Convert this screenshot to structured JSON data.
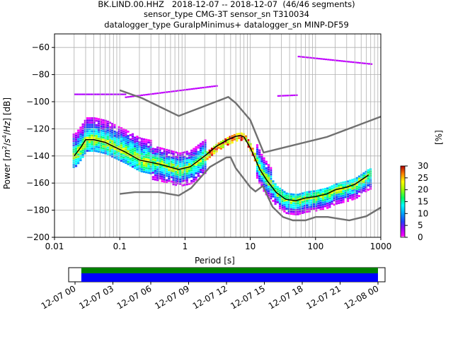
{
  "titles": [
    "BK.LIND.00.HHZ   2018-12-07 -- 2018-12-07  (46/46 segments)",
    "sensor_type CMG-3T sensor_sn T310034",
    "datalogger_type GuralpMinimus+ datalogger_sn MINP-DF59"
  ],
  "colorbar": {
    "label": "[%]",
    "ticks": [
      "0",
      "5",
      "10",
      "15",
      "20",
      "25",
      "30"
    ],
    "range": [
      0,
      30
    ]
  },
  "chart_data": [
    {
      "type": "line",
      "title": "BK.LIND.00.HHZ 2018-12-07 -- 2018-12-07 (46/46 segments)",
      "xlabel": "Period [s]",
      "ylabel": "Power [m²/s⁴/Hz] [dB]",
      "xscale": "log",
      "xlim": [
        0.01,
        1000
      ],
      "ylim": [
        -200,
        -50
      ],
      "xticks": [
        "0.01",
        "0.1",
        "1",
        "10",
        "100",
        "1000"
      ],
      "yticks": [
        "−200",
        "−180",
        "−160",
        "−140",
        "−120",
        "−100",
        "−80",
        "−60"
      ],
      "grid": true,
      "series": [
        {
          "role": "noise-model-high",
          "color": "#707070",
          "x": [
            0.1,
            0.22,
            0.8,
            3.8,
            4.6,
            6.0,
            10.0,
            16.0,
            150.0,
            300.0,
            1000.0
          ],
          "y": [
            -91.5,
            -97.4,
            -110.5,
            -98.0,
            -96.5,
            -101.0,
            -113.5,
            -137.5,
            -126.0,
            -120.5,
            -111.0
          ]
        },
        {
          "role": "noise-model-low",
          "color": "#707070",
          "x": [
            0.1,
            0.17,
            0.4,
            0.8,
            1.24,
            2.4,
            4.3,
            5.0,
            6.0,
            10.0,
            12.0,
            15.6,
            21.9,
            31.6,
            45.0,
            70.0,
            101.0,
            154.0,
            328.0,
            600.0,
            1000.0
          ],
          "y": [
            -168.0,
            -166.7,
            -166.7,
            -169.2,
            -163.7,
            -148.1,
            -141.1,
            -141.0,
            -149.0,
            -163.0,
            -166.2,
            -162.1,
            -177.5,
            -185.0,
            -187.5,
            -187.5,
            -185.0,
            -185.0,
            -187.5,
            -184.5,
            -178.0
          ]
        },
        {
          "role": "mode",
          "color": "#000000",
          "x": [
            0.02,
            0.025,
            0.03,
            0.04,
            0.06,
            0.08,
            0.12,
            0.2,
            0.4,
            0.8,
            1.2,
            2.0,
            3.0,
            4.5,
            6.0,
            7.0,
            8.0,
            10.0,
            14.0,
            18.0,
            25.0,
            35.0,
            50.0,
            70.0,
            100.0,
            150.0,
            200.0,
            300.0,
            400.0,
            650.0
          ],
          "y": [
            -140.0,
            -134.0,
            -128.0,
            -128.0,
            -130.0,
            -133.0,
            -137.0,
            -143.0,
            -146.0,
            -150.0,
            -148.0,
            -140.0,
            -133.0,
            -128.0,
            -125.5,
            -125.0,
            -126.0,
            -134.0,
            -150.0,
            -158.0,
            -167.0,
            -172.0,
            -173.0,
            -171.0,
            -170.0,
            -168.0,
            -165.0,
            -163.0,
            -161.0,
            -154.0
          ]
        }
      ],
      "histogram": "2D probability density histogram of PSD values colored by percent frequency (0–30%)"
    },
    {
      "type": "bar",
      "title": "",
      "xlabel": "",
      "ylabel": "",
      "description_of_axis": "time coverage, 2018-12-07 00:00 to 2018-12-08 00:00",
      "xticks": [
        "12-07 00",
        "12-07 03",
        "12-07 06",
        "12-07 09",
        "12-07 12",
        "12-07 15",
        "12-07 18",
        "12-07 21",
        "12-08 00"
      ],
      "series": [
        {
          "role": "data-coverage",
          "color": "#008000",
          "start_hours": 0.5,
          "end_hours": 24.0
        },
        {
          "role": "psd-coverage",
          "color": "#0000ff",
          "start_hours": 0.5,
          "end_hours": 24.0
        }
      ]
    }
  ]
}
